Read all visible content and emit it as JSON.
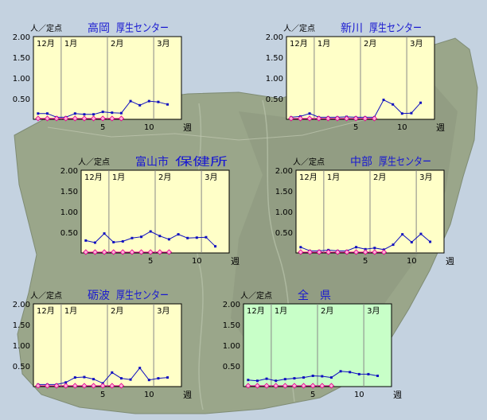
{
  "chart_data": [
    {
      "type": "line",
      "title": "高岡",
      "title_suffix": "厚生センター",
      "unit_label": "人／定点",
      "x_unit_label": "週",
      "ylim": [
        0,
        2.0
      ],
      "yticks": [
        "0.50",
        "1.00",
        "1.50",
        "2.00"
      ],
      "ytick_values": [
        0.5,
        1.0,
        1.5,
        2.0
      ],
      "months": [
        "12月",
        "1月",
        "2月",
        "3月"
      ],
      "month_start_weeks": [
        -2,
        1,
        6,
        11
      ],
      "xlim": [
        -2.5,
        13.5
      ],
      "xticks": [
        "5",
        "10"
      ],
      "xtick_values": [
        5,
        10
      ],
      "background": "#ffffc8",
      "series": [
        {
          "x": [
            -2,
            -1,
            0,
            1,
            2,
            3,
            4,
            5,
            6,
            7,
            8,
            9,
            10,
            11,
            12
          ],
          "values": [
            0.14,
            0.14,
            0.05,
            0.05,
            0.14,
            0.12,
            0.12,
            0.18,
            0.16,
            0.15,
            0.44,
            0.34,
            0.44,
            0.42,
            0.36
          ],
          "color": "#1010c0"
        },
        {
          "x": [
            -2,
            -1,
            0,
            1,
            2,
            3,
            4,
            5,
            6,
            7
          ],
          "values": [
            0.02,
            0.02,
            0.02,
            0.02,
            0.02,
            0.02,
            0.02,
            0.02,
            0.02,
            0.02
          ],
          "color": "#e0008c"
        }
      ]
    },
    {
      "type": "line",
      "title": "新川",
      "title_suffix": "厚生センター",
      "unit_label": "人／定点",
      "x_unit_label": "週",
      "ylim": [
        0,
        2.0
      ],
      "yticks": [
        "0.50",
        "1.00",
        "1.50",
        "2.00"
      ],
      "ytick_values": [
        0.5,
        1.0,
        1.5,
        2.0
      ],
      "months": [
        "12月",
        "1月",
        "2月",
        "3月"
      ],
      "month_start_weeks": [
        -2,
        1,
        6,
        11
      ],
      "xlim": [
        -2.5,
        13.5
      ],
      "xticks": [
        "5",
        "10"
      ],
      "xtick_values": [
        5,
        10
      ],
      "background": "#ffffc8",
      "series": [
        {
          "x": [
            -2,
            -1,
            0,
            1,
            2,
            3,
            4,
            5,
            6,
            7,
            8,
            9,
            10,
            11,
            12
          ],
          "values": [
            0.05,
            0.07,
            0.14,
            0.05,
            0.05,
            0.05,
            0.06,
            0.05,
            0.05,
            0.05,
            0.47,
            0.36,
            0.14,
            0.15,
            0.4
          ],
          "color": "#1010c0"
        },
        {
          "x": [
            -2,
            -1,
            0,
            1,
            2,
            3,
            4,
            5,
            6,
            7
          ],
          "values": [
            0.02,
            0.02,
            0.02,
            0.02,
            0.02,
            0.02,
            0.02,
            0.02,
            0.02,
            0.02
          ],
          "color": "#e0008c"
        }
      ]
    },
    {
      "type": "line",
      "title": "富山市",
      "title_suffix": "保健所",
      "unit_label": "人／定点",
      "x_unit_label": "週",
      "ylim": [
        0,
        2.0
      ],
      "yticks": [
        "0.50",
        "1.00",
        "1.50",
        "2.00"
      ],
      "ytick_values": [
        0.5,
        1.0,
        1.5,
        2.0
      ],
      "months": [
        "12月",
        "1月",
        "2月",
        "3月"
      ],
      "month_start_weeks": [
        -2,
        1,
        6,
        11
      ],
      "xlim": [
        -2.5,
        13.5
      ],
      "xticks": [
        "5",
        "10"
      ],
      "xtick_values": [
        5,
        10
      ],
      "background": "#ffffc8",
      "series": [
        {
          "x": [
            -2,
            -1,
            0,
            1,
            2,
            3,
            4,
            5,
            6,
            7,
            8,
            9,
            10,
            11,
            12
          ],
          "values": [
            0.3,
            0.25,
            0.47,
            0.26,
            0.28,
            0.36,
            0.39,
            0.52,
            0.41,
            0.33,
            0.45,
            0.36,
            0.37,
            0.38,
            0.16
          ],
          "color": "#1010c0"
        },
        {
          "x": [
            -2,
            -1,
            0,
            1,
            2,
            3,
            4,
            5,
            6,
            7
          ],
          "values": [
            0.02,
            0.02,
            0.02,
            0.02,
            0.02,
            0.02,
            0.02,
            0.02,
            0.02,
            0.02
          ],
          "color": "#e0008c"
        }
      ]
    },
    {
      "type": "line",
      "title": "中部",
      "title_suffix": "厚生センター",
      "unit_label": "人／定点",
      "x_unit_label": "週",
      "ylim": [
        0,
        2.0
      ],
      "yticks": [
        "0.50",
        "1.00",
        "1.50",
        "2.00"
      ],
      "ytick_values": [
        0.5,
        1.0,
        1.5,
        2.0
      ],
      "months": [
        "12月",
        "1月",
        "2月",
        "3月"
      ],
      "month_start_weeks": [
        -2,
        1,
        6,
        11
      ],
      "xlim": [
        -2.5,
        13.5
      ],
      "xticks": [
        "5",
        "10"
      ],
      "xtick_values": [
        5,
        10
      ],
      "background": "#ffffc8",
      "series": [
        {
          "x": [
            -2,
            -1,
            0,
            1,
            2,
            3,
            4,
            5,
            6,
            7,
            8,
            9,
            10,
            11,
            12
          ],
          "values": [
            0.14,
            0.05,
            0.05,
            0.07,
            0.05,
            0.05,
            0.14,
            0.09,
            0.12,
            0.08,
            0.2,
            0.45,
            0.26,
            0.46,
            0.27
          ],
          "color": "#1010c0"
        },
        {
          "x": [
            -2,
            -1,
            0,
            1,
            2,
            3,
            4,
            5,
            6,
            7
          ],
          "values": [
            0.02,
            0.02,
            0.02,
            0.02,
            0.02,
            0.02,
            0.02,
            0.02,
            0.02,
            0.02
          ],
          "color": "#e0008c"
        }
      ]
    },
    {
      "type": "line",
      "title": "砺波",
      "title_suffix": "厚生センター",
      "unit_label": "人／定点",
      "x_unit_label": "週",
      "ylim": [
        0,
        2.0
      ],
      "yticks": [
        "0.50",
        "1.00",
        "1.50",
        "2.00"
      ],
      "ytick_values": [
        0.5,
        1.0,
        1.5,
        2.0
      ],
      "months": [
        "12月",
        "1月",
        "2月",
        "3月"
      ],
      "month_start_weeks": [
        -2,
        1,
        6,
        11
      ],
      "xlim": [
        -2.5,
        13.5
      ],
      "xticks": [
        "5",
        "10"
      ],
      "xtick_values": [
        5,
        10
      ],
      "background": "#ffffc8",
      "series": [
        {
          "x": [
            -2,
            -1,
            0,
            1,
            2,
            3,
            4,
            5,
            6,
            7,
            8,
            9,
            10,
            11,
            12
          ],
          "values": [
            0.05,
            0.05,
            0.05,
            0.1,
            0.22,
            0.23,
            0.18,
            0.08,
            0.34,
            0.2,
            0.17,
            0.45,
            0.16,
            0.2,
            0.22
          ],
          "color": "#1010c0"
        },
        {
          "x": [
            -2,
            -1,
            0,
            1,
            2,
            3,
            4,
            5,
            6,
            7
          ],
          "values": [
            0.02,
            0.02,
            0.02,
            0.02,
            0.02,
            0.02,
            0.02,
            0.02,
            0.02,
            0.02
          ],
          "color": "#e0008c"
        }
      ]
    },
    {
      "type": "line",
      "title": "全　県",
      "title_suffix": "",
      "unit_label": "人／定点",
      "x_unit_label": "週",
      "ylim": [
        0,
        2.0
      ],
      "yticks": [
        "0.50",
        "1.00",
        "1.50",
        "2.00"
      ],
      "ytick_values": [
        0.5,
        1.0,
        1.5,
        2.0
      ],
      "months": [
        "12月",
        "1月",
        "2月",
        "3月"
      ],
      "month_start_weeks": [
        -2,
        1,
        6,
        11
      ],
      "xlim": [
        -2.5,
        13.5
      ],
      "xticks": [
        "5",
        "10"
      ],
      "xtick_values": [
        5,
        10
      ],
      "background": "#c8ffc8",
      "series": [
        {
          "x": [
            -2,
            -1,
            0,
            1,
            2,
            3,
            4,
            5,
            6,
            7,
            8,
            9,
            10,
            11,
            12
          ],
          "values": [
            0.16,
            0.14,
            0.19,
            0.14,
            0.18,
            0.2,
            0.22,
            0.26,
            0.25,
            0.22,
            0.37,
            0.35,
            0.3,
            0.3,
            0.26
          ],
          "color": "#1010c0"
        },
        {
          "x": [
            -2,
            -1,
            0,
            1,
            2,
            3,
            4,
            5,
            6,
            7
          ],
          "values": [
            0.02,
            0.02,
            0.02,
            0.02,
            0.02,
            0.02,
            0.02,
            0.02,
            0.02,
            0.02
          ],
          "color": "#e0008c"
        }
      ]
    }
  ]
}
